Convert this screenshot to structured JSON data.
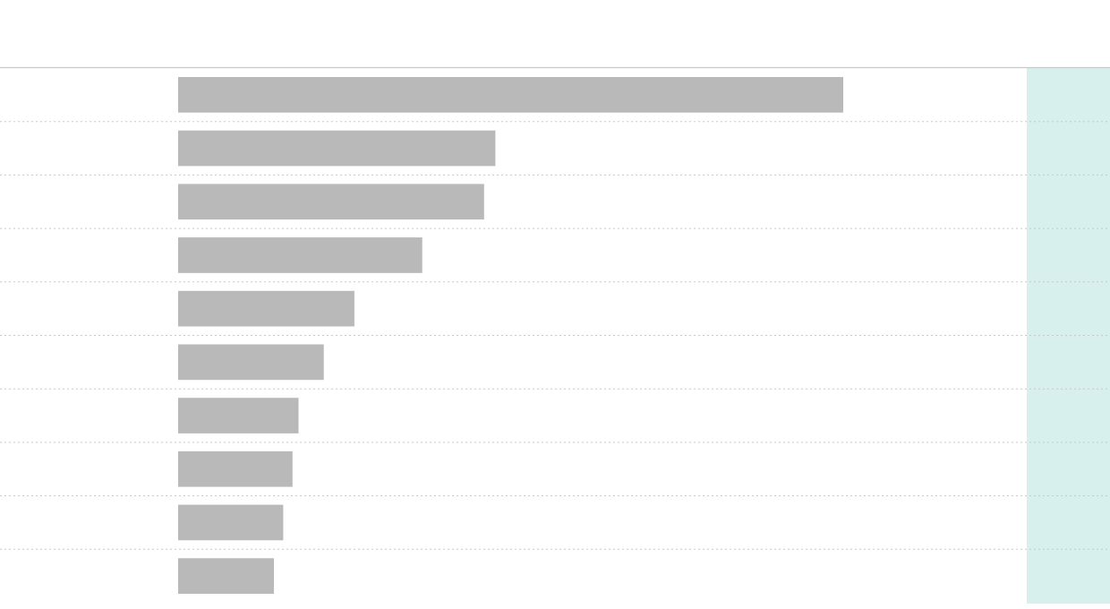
{
  "chart_data": {
    "type": "bar",
    "orientation": "horizontal",
    "categories": [
      "",
      "",
      "",
      "",
      "",
      "",
      "",
      "",
      "",
      ""
    ],
    "values": [
      100,
      47.7,
      46,
      36.7,
      26.5,
      21.9,
      18.1,
      17.2,
      15.8,
      14.4
    ],
    "xlim": [
      0,
      100
    ],
    "grid": true,
    "bar_color": "#b9b9b9",
    "grid_color": "#c8c8c8",
    "axis_color": "#c8c8c8",
    "highlight_color": "#d7f0ed"
  }
}
